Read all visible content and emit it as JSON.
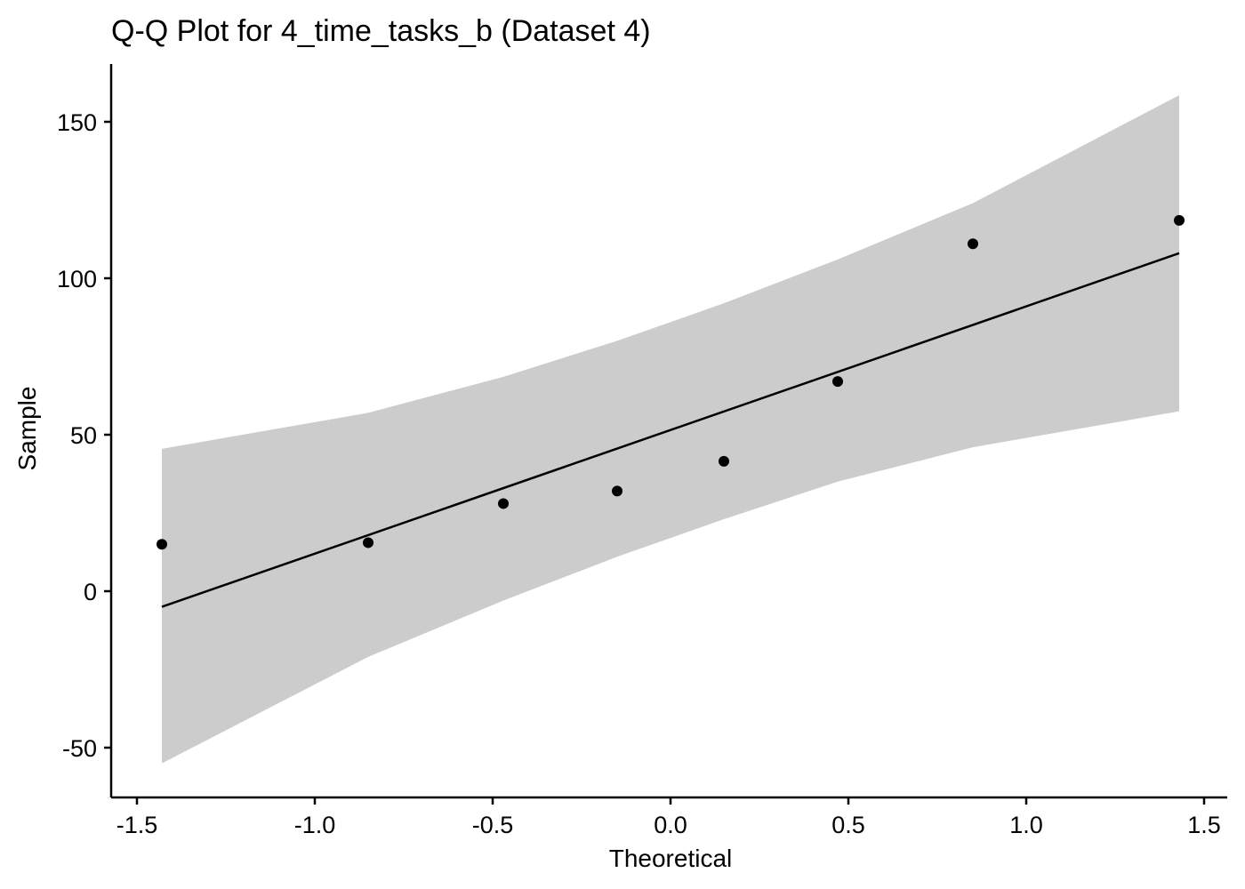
{
  "chart_data": {
    "type": "scatter",
    "title": "Q-Q Plot for 4_time_tasks_b (Dataset 4)",
    "xlabel": "Theoretical",
    "ylabel": "Sample",
    "xlim": [
      -1.5,
      1.5
    ],
    "ylim": [
      -50,
      150
    ],
    "xticks": [
      -1.5,
      -1.0,
      -0.5,
      0.0,
      0.5,
      1.0,
      1.5
    ],
    "xtick_labels": [
      "-1.5",
      "-1.0",
      "-0.5",
      "0.0",
      "0.5",
      "1.0",
      "1.5"
    ],
    "yticks": [
      -50,
      0,
      50,
      100,
      150
    ],
    "ytick_labels": [
      "-50",
      "0",
      "50",
      "100",
      "150"
    ],
    "grid": false,
    "legend": "none",
    "points": {
      "x": [
        -1.43,
        -0.85,
        -0.47,
        -0.15,
        0.15,
        0.47,
        0.85,
        1.43
      ],
      "y": [
        15,
        15.5,
        28,
        32,
        41.5,
        67,
        111,
        118.5
      ]
    },
    "reference_line": {
      "x": [
        -1.43,
        1.43
      ],
      "y": [
        -5,
        108
      ]
    },
    "confidence_band": {
      "x": [
        -1.43,
        -0.85,
        -0.47,
        -0.15,
        0.15,
        0.47,
        0.85,
        1.43
      ],
      "lower": [
        -55,
        -21,
        -3,
        11,
        23,
        35,
        46,
        57.5
      ],
      "upper": [
        45.5,
        57,
        68.5,
        80,
        92,
        106,
        124,
        158.5
      ]
    },
    "colors": {
      "points": "#000000",
      "line": "#000000",
      "band": "#cccccc",
      "axis": "#000000"
    }
  }
}
